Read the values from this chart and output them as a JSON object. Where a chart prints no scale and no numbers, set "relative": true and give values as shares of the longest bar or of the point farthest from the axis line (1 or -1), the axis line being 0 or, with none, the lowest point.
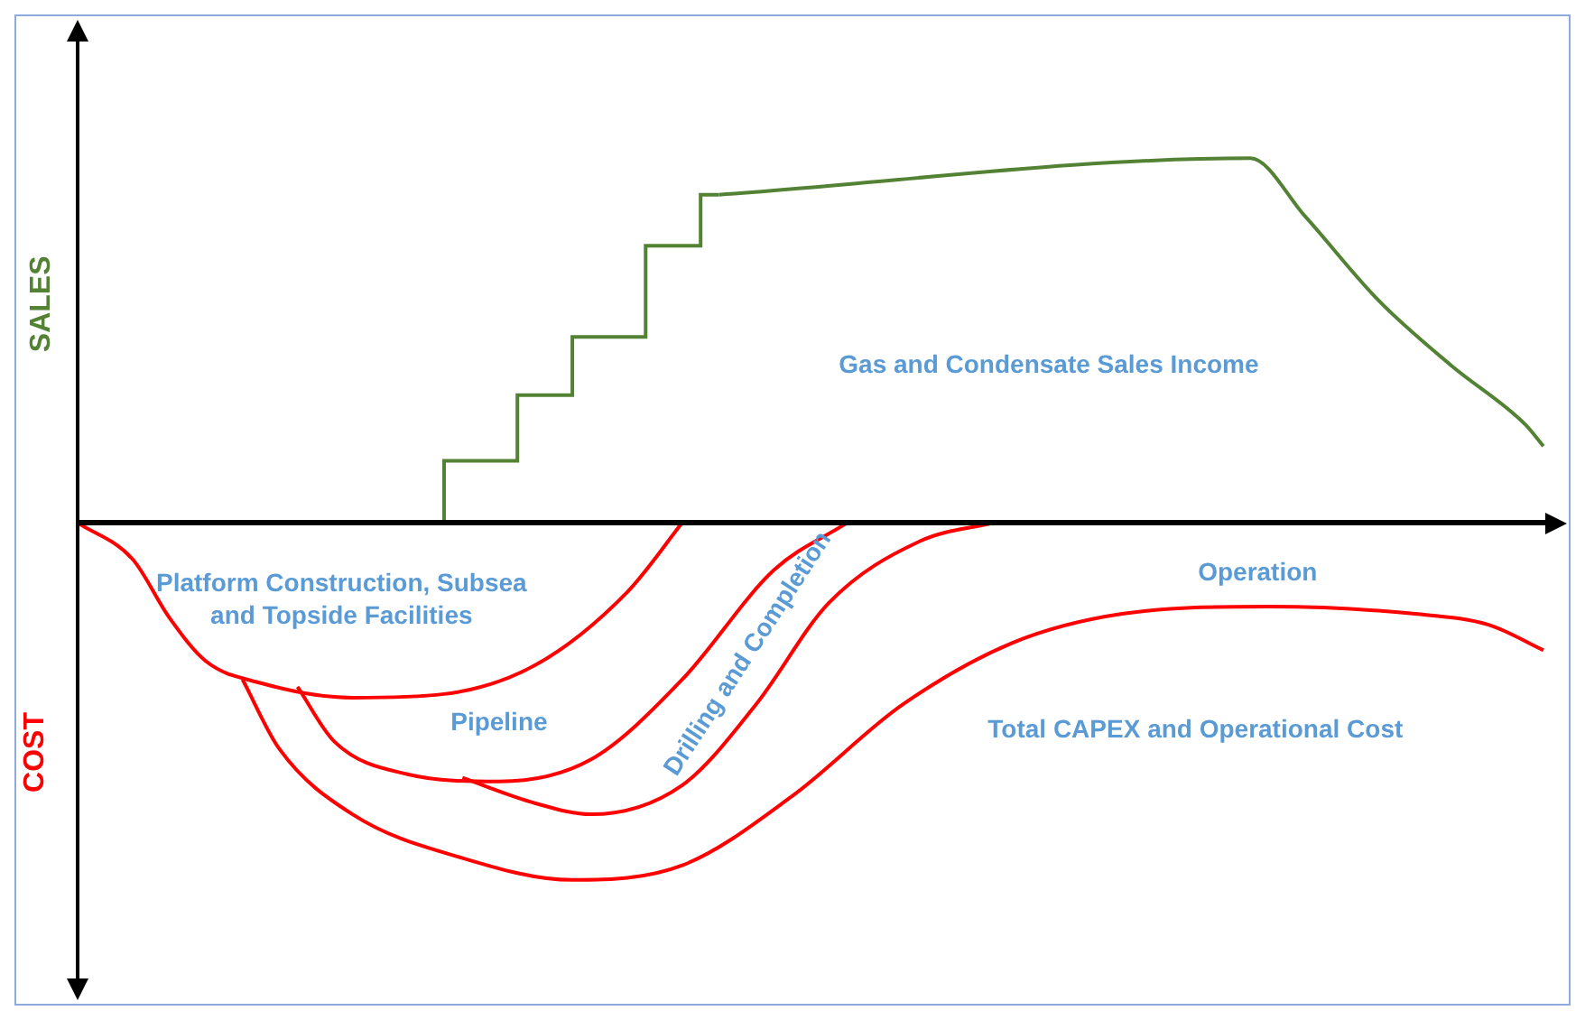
{
  "chart_data": {
    "type": "line",
    "relative": true,
    "ylabel": "SALES",
    "categories": [
      null,
      null,
      null,
      null,
      null,
      null,
      null,
      null,
      null,
      null,
      null,
      null,
      null,
      null,
      null,
      null,
      null,
      null,
      null,
      null,
      null,
      null,
      null,
      null,
      null,
      null,
      null,
      null,
      null,
      null,
      null,
      null,
      null,
      null,
      null,
      null,
      null,
      null,
      null,
      null,
      null,
      null,
      null,
      null,
      null,
      null,
      null,
      null,
      null,
      null,
      null,
      null,
      null,
      null,
      null,
      null,
      null,
      null,
      null,
      null,
      null,
      null,
      null,
      null,
      null,
      null,
      null,
      null,
      null,
      null,
      null,
      null,
      null,
      null,
      null,
      null,
      null,
      null,
      null,
      null,
      null
    ],
    "series": [
      {
        "type": "step",
        "color": "#548235",
        "values": [
          null,
          null,
          null,
          null,
          null,
          null,
          null,
          null,
          null,
          null,
          null,
          null,
          null,
          null,
          null,
          null,
          null,
          null,
          null,
          null,
          0,
          0.17,
          0.17,
          0.17,
          0.17,
          0.35,
          0.35,
          0.35,
          0.51,
          0.51,
          0.51,
          0.51,
          0.76,
          0.76,
          0.76,
          0.9,
          null,
          null,
          null,
          null,
          null,
          null,
          null,
          null,
          null,
          null,
          null,
          null,
          null,
          null,
          null,
          null,
          null,
          null,
          null,
          null,
          null,
          null,
          null,
          null,
          null,
          null,
          null,
          null,
          null,
          null,
          null,
          null,
          null,
          null,
          null,
          null,
          null,
          null,
          null,
          null,
          null,
          null,
          null,
          null,
          null
        ]
      },
      {
        "type": "line",
        "color": "#548235",
        "values": [
          null,
          null,
          null,
          null,
          null,
          null,
          null,
          null,
          null,
          null,
          null,
          null,
          null,
          null,
          null,
          null,
          null,
          null,
          null,
          null,
          null,
          null,
          null,
          null,
          null,
          null,
          null,
          null,
          null,
          null,
          null,
          null,
          null,
          null,
          null,
          0.9,
          null,
          null,
          null,
          null,
          null,
          null,
          null,
          null,
          null,
          null,
          null,
          null,
          null,
          null,
          null,
          null,
          null,
          null,
          null,
          null,
          null,
          null,
          null,
          null,
          null,
          null,
          null,
          null,
          1,
          null,
          null,
          0.84,
          null,
          null,
          null,
          0.61,
          null,
          null,
          null,
          0.43,
          null,
          null,
          null,
          0.27,
          0.21
        ]
      },
      {
        "type": "line",
        "color": "#ff0000",
        "values": [
          0,
          null,
          null,
          -0.1,
          null,
          -0.26,
          null,
          -0.38,
          null,
          null,
          -0.44,
          null,
          null,
          null,
          null,
          -0.48,
          null,
          null,
          null,
          null,
          -0.47,
          null,
          null,
          null,
          null,
          -0.39,
          null,
          null,
          null,
          null,
          -0.19,
          null,
          null,
          0,
          null,
          null,
          null,
          null,
          null,
          null,
          null,
          null,
          null,
          null,
          null,
          null,
          null,
          null,
          null,
          null,
          null,
          null,
          null,
          null,
          null,
          null,
          null,
          null,
          null,
          null,
          null,
          null,
          null,
          null,
          null,
          null,
          null,
          null,
          null,
          null,
          null,
          null,
          null,
          null,
          null,
          null,
          null,
          null,
          null,
          null,
          null
        ]
      },
      {
        "type": "line",
        "color": "#ff0000",
        "values": [
          null,
          null,
          null,
          null,
          null,
          null,
          null,
          null,
          null,
          null,
          null,
          null,
          -0.45,
          null,
          -0.6,
          null,
          null,
          null,
          -0.69,
          null,
          null,
          null,
          null,
          -0.71,
          null,
          null,
          null,
          null,
          -0.65,
          null,
          null,
          null,
          null,
          -0.43,
          null,
          null,
          null,
          null,
          -0.13,
          null,
          null,
          null,
          0,
          null,
          null,
          null,
          null,
          null,
          null,
          null,
          null,
          null,
          null,
          null,
          null,
          null,
          null,
          null,
          null,
          null,
          null,
          null,
          null,
          null,
          null,
          null,
          null,
          null,
          null,
          null,
          null,
          null,
          null,
          null,
          null,
          null,
          null,
          null,
          null,
          null,
          null
        ]
      },
      {
        "type": "line",
        "color": "#ff0000",
        "values": [
          null,
          null,
          null,
          null,
          null,
          null,
          null,
          null,
          null,
          null,
          null,
          null,
          null,
          null,
          null,
          null,
          null,
          null,
          null,
          null,
          null,
          -0.7,
          null,
          null,
          null,
          -0.77,
          null,
          null,
          -0.8,
          null,
          null,
          null,
          null,
          -0.72,
          null,
          null,
          null,
          -0.5,
          null,
          null,
          null,
          -0.22,
          null,
          null,
          null,
          null,
          -0.05,
          null,
          null,
          null,
          0,
          null,
          null,
          null,
          null,
          null,
          null,
          null,
          null,
          null,
          null,
          null,
          null,
          null,
          null,
          null,
          null,
          null,
          null,
          null,
          null,
          null,
          null,
          null,
          null,
          null,
          null,
          null,
          null,
          null,
          null
        ]
      },
      {
        "type": "line",
        "color": "#ff0000",
        "values": [
          null,
          null,
          null,
          null,
          null,
          null,
          null,
          null,
          null,
          -0.43,
          null,
          -0.62,
          null,
          null,
          null,
          -0.8,
          null,
          null,
          null,
          null,
          null,
          -0.92,
          null,
          null,
          null,
          null,
          null,
          -0.98,
          null,
          null,
          null,
          null,
          null,
          -0.94,
          null,
          null,
          null,
          null,
          null,
          -0.75,
          null,
          null,
          null,
          null,
          null,
          -0.5,
          null,
          null,
          null,
          null,
          null,
          -0.33,
          null,
          null,
          null,
          null,
          null,
          -0.25,
          null,
          null,
          null,
          null,
          null,
          null,
          null,
          -0.23,
          null,
          null,
          null,
          null,
          null,
          null,
          null,
          -0.25,
          null,
          null,
          null,
          -0.28,
          null,
          null,
          -0.35
        ]
      }
    ],
    "annotations": [
      "Gas and Condensate Sales Income",
      "Platform Construction, Subsea\nand Topside Facilities",
      "Pipeline",
      "Drilling and Completion",
      "Operation",
      "Total CAPEX and Operational Cost",
      "COST"
    ]
  }
}
